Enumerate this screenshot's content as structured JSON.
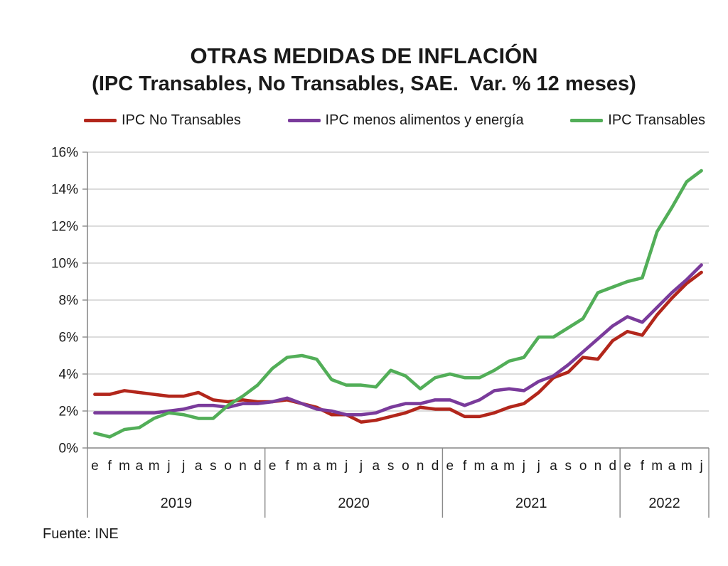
{
  "header": {
    "title": "OTRAS MEDIDAS DE INFLACIÓN",
    "subtitle": "(IPC Transables, No Transables, SAE.  Var. % 12 meses)"
  },
  "source": "Fuente: INE",
  "chart_data": {
    "type": "line",
    "title": "OTRAS MEDIDAS DE INFLACIÓN (IPC Transables, No Transables, SAE. Var. % 12 meses)",
    "xlabel": "",
    "ylabel": "",
    "ylim": [
      0,
      16
    ],
    "ytick_step": 2,
    "ytick_labels": [
      "0%",
      "2%",
      "4%",
      "6%",
      "8%",
      "10%",
      "12%",
      "14%",
      "16%"
    ],
    "grid": true,
    "legend_position": "top",
    "years": [
      {
        "label": "2019",
        "months": 12
      },
      {
        "label": "2020",
        "months": 12
      },
      {
        "label": "2021",
        "months": 12
      },
      {
        "label": "2022",
        "months": 6
      }
    ],
    "month_letters": [
      "e",
      "f",
      "m",
      "a",
      "m",
      "j",
      "j",
      "a",
      "s",
      "o",
      "n",
      "d",
      "e",
      "f",
      "m",
      "a",
      "m",
      "j",
      "j",
      "a",
      "s",
      "o",
      "n",
      "d",
      "e",
      "f",
      "m",
      "a",
      "m",
      "j",
      "j",
      "a",
      "s",
      "o",
      "n",
      "d",
      "e",
      "f",
      "m",
      "a",
      "m",
      "j"
    ],
    "axis_color": "#8a8a8a",
    "grid_color": "#c8c8c8",
    "series": [
      {
        "name": "IPC No Transables",
        "color": "#b2261b",
        "values": [
          2.9,
          2.9,
          3.1,
          3.0,
          2.9,
          2.8,
          2.8,
          3.0,
          2.6,
          2.5,
          2.6,
          2.5,
          2.5,
          2.6,
          2.4,
          2.2,
          1.8,
          1.8,
          1.4,
          1.5,
          1.7,
          1.9,
          2.2,
          2.1,
          2.1,
          1.7,
          1.7,
          1.9,
          2.2,
          2.4,
          3.0,
          3.8,
          4.1,
          4.9,
          4.8,
          5.8,
          6.3,
          6.1,
          7.2,
          8.1,
          8.9,
          9.5
        ]
      },
      {
        "name": "IPC menos alimentos y energía",
        "color": "#7a3b9b",
        "values": [
          1.9,
          1.9,
          1.9,
          1.9,
          1.9,
          2.0,
          2.1,
          2.3,
          2.3,
          2.2,
          2.4,
          2.4,
          2.5,
          2.7,
          2.4,
          2.1,
          2.0,
          1.8,
          1.8,
          1.9,
          2.2,
          2.4,
          2.4,
          2.6,
          2.6,
          2.3,
          2.6,
          3.1,
          3.2,
          3.1,
          3.6,
          3.9,
          4.5,
          5.2,
          5.9,
          6.6,
          7.1,
          6.8,
          7.6,
          8.4,
          9.1,
          9.9
        ]
      },
      {
        "name": "IPC Transables",
        "color": "#52ae58",
        "values": [
          0.8,
          0.6,
          1.0,
          1.1,
          1.6,
          1.9,
          1.8,
          1.6,
          1.6,
          2.3,
          2.8,
          3.4,
          4.3,
          4.9,
          5.0,
          4.8,
          3.7,
          3.4,
          3.4,
          3.3,
          4.2,
          3.9,
          3.2,
          3.8,
          4.0,
          3.8,
          3.8,
          4.2,
          4.7,
          4.9,
          6.0,
          6.0,
          6.5,
          7.0,
          8.4,
          8.7,
          9.0,
          9.2,
          11.7,
          13.0,
          14.4,
          15.0
        ]
      }
    ]
  }
}
